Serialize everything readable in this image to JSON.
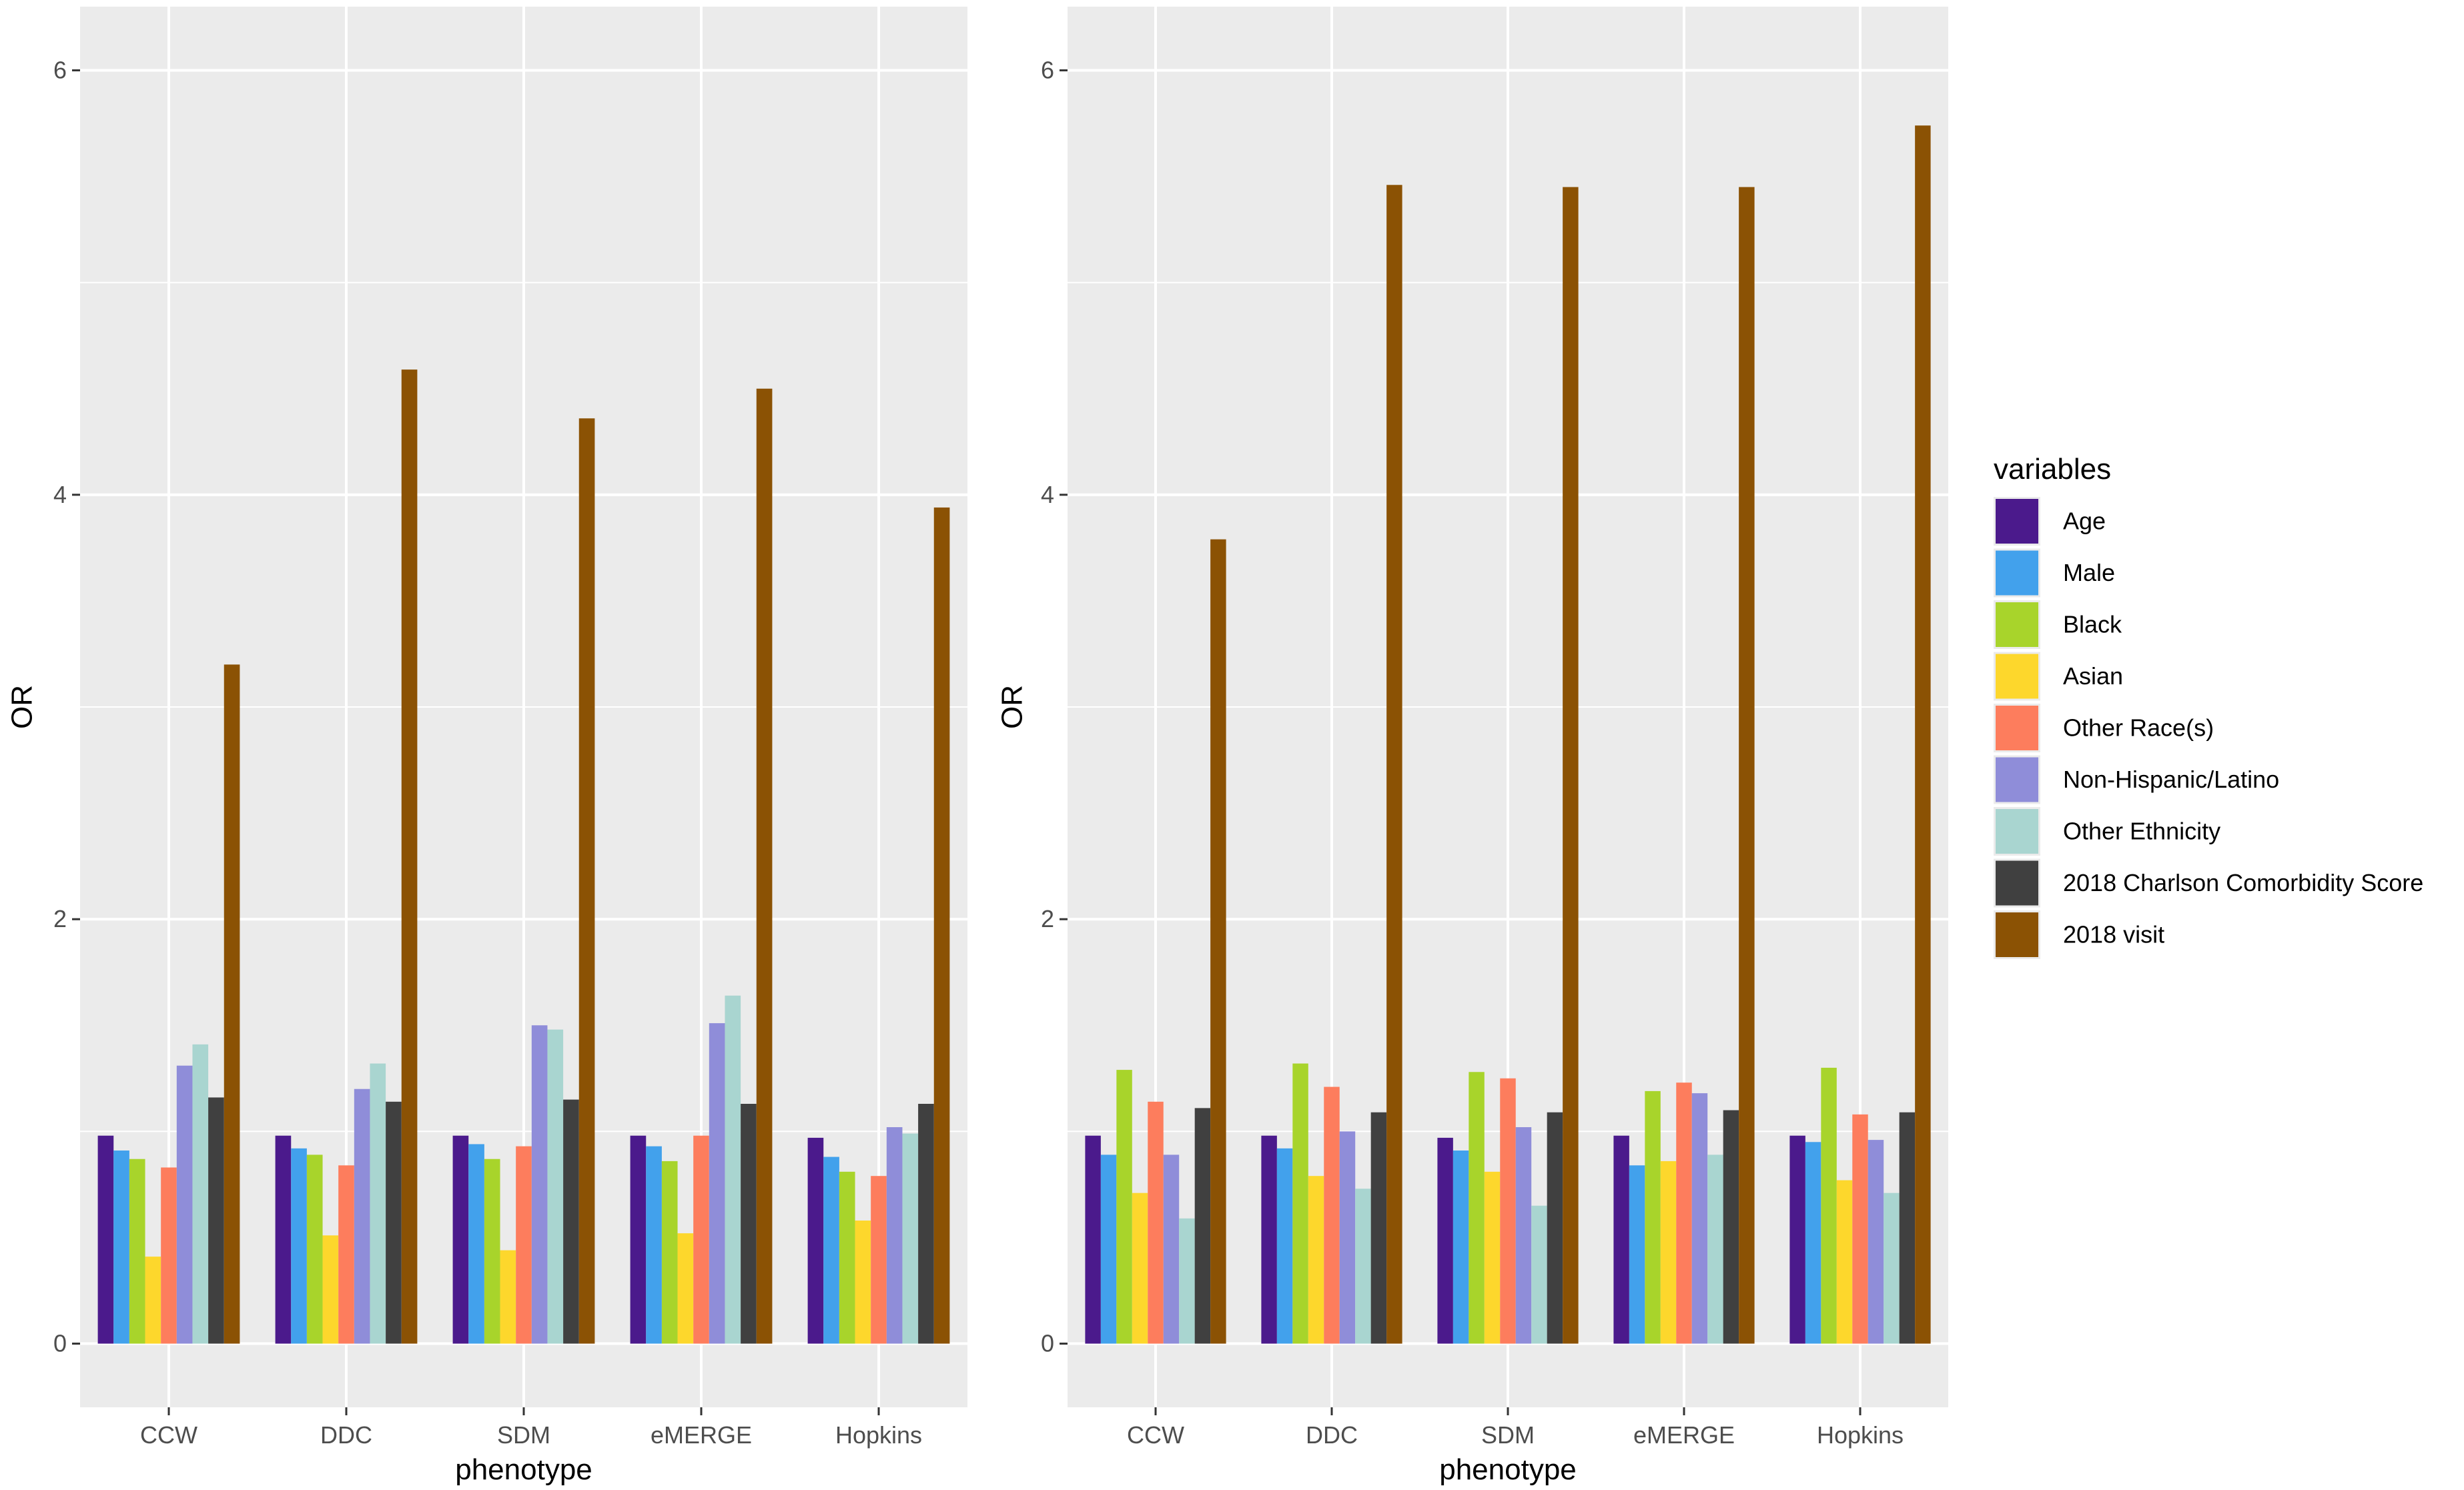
{
  "chart_data": [
    {
      "type": "bar",
      "panel": "left",
      "xlabel": "phenotype",
      "ylabel": "OR",
      "ylim": [
        -0.3,
        6.3
      ],
      "yticks": [
        0,
        2,
        4,
        6
      ],
      "categories": [
        "CCW",
        "DDC",
        "SDM",
        "eMERGE",
        "Hopkins"
      ],
      "series": [
        {
          "name": "Age",
          "values": [
            0.98,
            0.98,
            0.98,
            0.98,
            0.97
          ]
        },
        {
          "name": "Male",
          "values": [
            0.91,
            0.92,
            0.94,
            0.93,
            0.88
          ]
        },
        {
          "name": "Black",
          "values": [
            0.87,
            0.89,
            0.87,
            0.86,
            0.81
          ]
        },
        {
          "name": "Asian",
          "values": [
            0.41,
            0.51,
            0.44,
            0.52,
            0.58
          ]
        },
        {
          "name": "Other Race(s)",
          "values": [
            0.83,
            0.84,
            0.93,
            0.98,
            0.79
          ]
        },
        {
          "name": "Non-Hispanic/Latino",
          "values": [
            1.31,
            1.2,
            1.5,
            1.51,
            1.02
          ]
        },
        {
          "name": "Other Ethnicity",
          "values": [
            1.41,
            1.32,
            1.48,
            1.64,
            0.99
          ]
        },
        {
          "name": "2018 Charlson Comorbidity Score",
          "values": [
            1.16,
            1.14,
            1.15,
            1.13,
            1.13
          ]
        },
        {
          "name": "2018 visit",
          "values": [
            3.2,
            4.59,
            4.36,
            4.5,
            3.94
          ]
        }
      ]
    },
    {
      "type": "bar",
      "panel": "right",
      "xlabel": "phenotype",
      "ylabel": "OR",
      "ylim": [
        -0.3,
        6.3
      ],
      "yticks": [
        0,
        2,
        4,
        6
      ],
      "categories": [
        "CCW",
        "DDC",
        "SDM",
        "eMERGE",
        "Hopkins"
      ],
      "series": [
        {
          "name": "Age",
          "values": [
            0.98,
            0.98,
            0.97,
            0.98,
            0.98
          ]
        },
        {
          "name": "Male",
          "values": [
            0.89,
            0.92,
            0.91,
            0.84,
            0.95
          ]
        },
        {
          "name": "Black",
          "values": [
            1.29,
            1.32,
            1.28,
            1.19,
            1.3
          ]
        },
        {
          "name": "Asian",
          "values": [
            0.71,
            0.79,
            0.81,
            0.86,
            0.77
          ]
        },
        {
          "name": "Other Race(s)",
          "values": [
            1.14,
            1.21,
            1.25,
            1.23,
            1.08
          ]
        },
        {
          "name": "Non-Hispanic/Latino",
          "values": [
            0.89,
            1.0,
            1.02,
            1.18,
            0.96
          ]
        },
        {
          "name": "Other Ethnicity",
          "values": [
            0.59,
            0.73,
            0.65,
            0.89,
            0.71
          ]
        },
        {
          "name": "2018 Charlson Comorbidity Score",
          "values": [
            1.11,
            1.09,
            1.09,
            1.1,
            1.09
          ]
        },
        {
          "name": "2018 visit",
          "values": [
            3.79,
            5.46,
            5.45,
            5.45,
            5.74
          ]
        }
      ]
    }
  ],
  "legend": {
    "title": "variables",
    "items": [
      {
        "label": "Age",
        "color": "#4b1a8c"
      },
      {
        "label": "Male",
        "color": "#42a1ec"
      },
      {
        "label": "Black",
        "color": "#a8d42b"
      },
      {
        "label": "Asian",
        "color": "#fdd72c"
      },
      {
        "label": "Other Race(s)",
        "color": "#fd7d5d"
      },
      {
        "label": "Non-Hispanic/Latino",
        "color": "#8f8dd9"
      },
      {
        "label": "Other Ethnicity",
        "color": "#a9d5d0"
      },
      {
        "label": "2018 Charlson Comorbidity Score",
        "color": "#404040"
      },
      {
        "label": "2018 visit",
        "color": "#8b5204"
      }
    ]
  },
  "colors": {
    "panel_background": "#ebebeb",
    "grid": "#ffffff",
    "tick_text": "#4d4d4d"
  }
}
